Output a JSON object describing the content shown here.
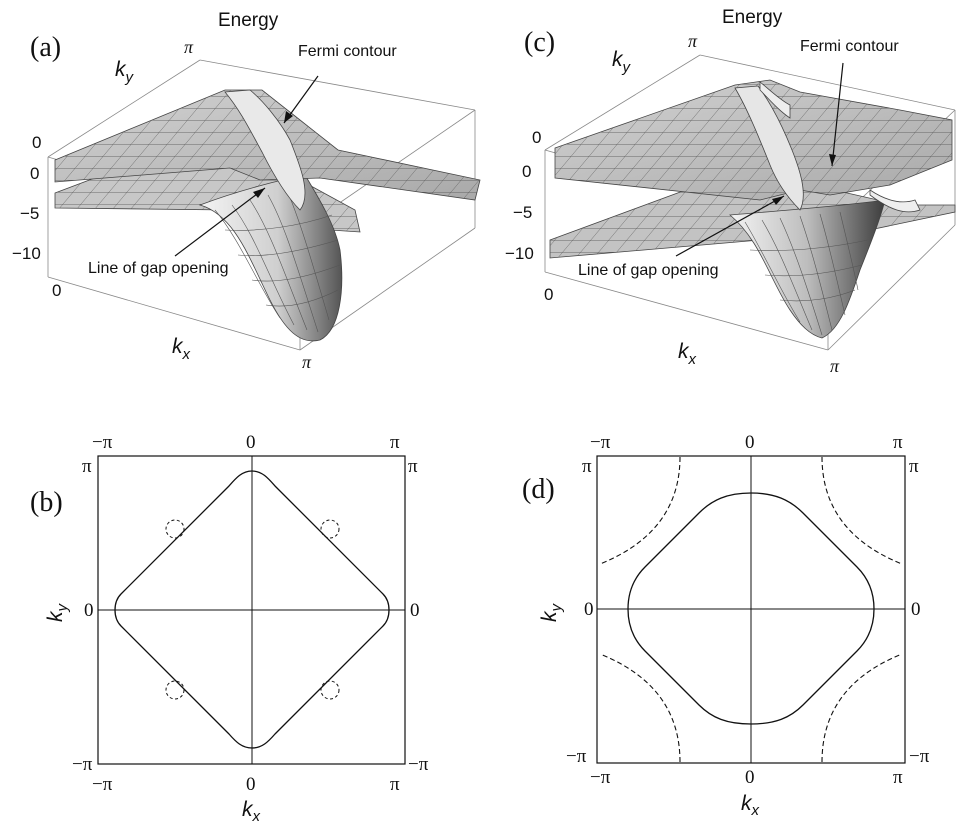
{
  "panels": {
    "a": {
      "label": "(a)",
      "energy_label": "Energy",
      "ky_label": "k",
      "ky_sub": "y",
      "kx_label": "k",
      "kx_sub": "x",
      "ky_tick_pi": "π",
      "kx_tick_zero": "0",
      "kx_tick_pi": "π",
      "energy_ticks": [
        "0",
        "0",
        "−5",
        "−10"
      ],
      "annotation_fermi": "Fermi contour",
      "annotation_gap": "Line of gap opening"
    },
    "c": {
      "label": "(c)",
      "energy_label": "Energy",
      "ky_label": "k",
      "ky_sub": "y",
      "kx_label": "k",
      "kx_sub": "x",
      "ky_tick_pi": "π",
      "kx_tick_zero": "0",
      "kx_tick_pi": "π",
      "energy_ticks": [
        "0",
        "0",
        "−5",
        "−10"
      ],
      "annotation_fermi": "Fermi contour",
      "annotation_gap": "Line of gap opening"
    },
    "b": {
      "label": "(b)",
      "top_ticks": [
        "−π",
        "0",
        "π"
      ],
      "bottom_ticks": [
        "−π",
        "0",
        "π"
      ],
      "left_ticks": [
        "π",
        "0",
        "−π"
      ],
      "right_ticks": [
        "π",
        "0",
        "−π"
      ],
      "xlabel": "k",
      "xlabel_sub": "x",
      "ylabel": "k",
      "ylabel_sub": "y"
    },
    "d": {
      "label": "(d)",
      "top_ticks": [
        "−π",
        "0",
        "π"
      ],
      "bottom_ticks": [
        "−π",
        "0",
        "π"
      ],
      "left_ticks": [
        "π",
        "0",
        "−π"
      ],
      "right_ticks": [
        "π",
        "0",
        "−π"
      ],
      "xlabel": "k",
      "xlabel_sub": "x",
      "ylabel": "k",
      "ylabel_sub": "y"
    }
  },
  "colors": {
    "surface": "#bdbdbd",
    "surface_light": "#e8e8e8",
    "grid": "#555555",
    "line": "#111111"
  }
}
